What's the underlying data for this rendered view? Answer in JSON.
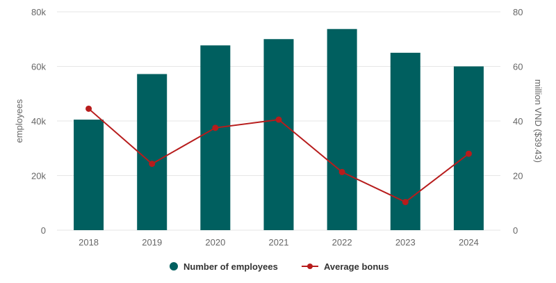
{
  "chart_data": {
    "type": "bar",
    "categories": [
      "2018",
      "2019",
      "2020",
      "2021",
      "2022",
      "2023",
      "2024"
    ],
    "series": [
      {
        "name": "Number of employees",
        "type": "bar",
        "axis": "left",
        "color": "#005f5f",
        "values": [
          40500,
          57200,
          67700,
          70000,
          73700,
          65000,
          60000
        ]
      },
      {
        "name": "Average bonus",
        "type": "line",
        "axis": "right",
        "color": "#b71c1c",
        "values": [
          44.5,
          24.3,
          37.5,
          40.5,
          21.3,
          10.3,
          28.0
        ]
      }
    ],
    "ylabel_left": "employees",
    "ylabel_right": "million VND ($39.43)",
    "ylim_left": [
      0,
      80000
    ],
    "ylim_right": [
      0,
      80
    ],
    "yticks_left": [
      "0",
      "20k",
      "40k",
      "60k",
      "80k"
    ],
    "yticks_right": [
      "0",
      "20",
      "40",
      "60",
      "80"
    ],
    "grid": true,
    "legend_position": "bottom"
  }
}
